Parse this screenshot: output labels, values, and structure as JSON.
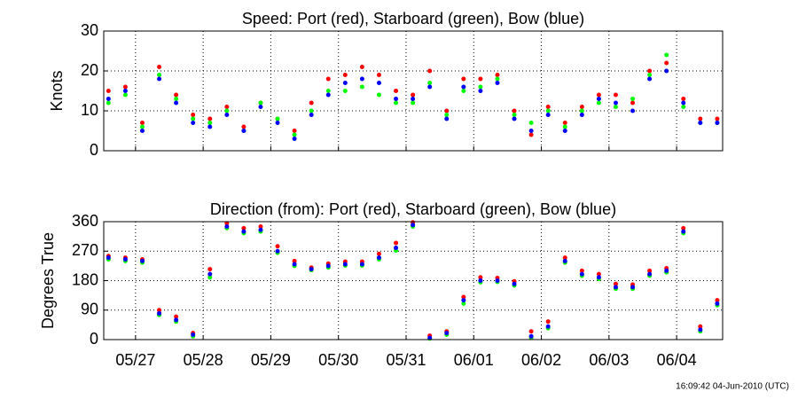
{
  "chart_data": [
    {
      "type": "scatter",
      "title": "Speed: Port (red), Starboard (green), Bow (blue)",
      "y_label": "Knots",
      "x": [
        -0.4,
        -0.15,
        0.1,
        0.35,
        0.6,
        0.85,
        1.1,
        1.35,
        1.6,
        1.85,
        2.1,
        2.35,
        2.6,
        2.85,
        3.1,
        3.35,
        3.6,
        3.85,
        4.1,
        4.35,
        4.6,
        4.85,
        5.1,
        5.35,
        5.6,
        5.85,
        6.1,
        6.35,
        6.6,
        6.85,
        7.1,
        7.35,
        7.6,
        7.85,
        8.1,
        8.35,
        8.6
      ],
      "series": [
        {
          "name": "Port",
          "color": "#ff0000",
          "values": [
            15,
            16,
            7,
            21,
            14,
            9,
            8,
            11,
            6,
            12,
            8,
            5,
            12,
            18,
            19,
            21,
            19,
            15,
            14,
            20,
            10,
            18,
            18,
            19,
            10,
            4,
            11,
            7,
            11,
            14,
            14,
            12,
            20,
            22,
            13,
            8,
            8
          ]
        },
        {
          "name": "Starboard",
          "color": "#00ff00",
          "values": [
            12,
            14,
            6,
            19,
            13,
            8,
            7,
            10,
            5,
            12,
            8,
            4,
            10,
            15,
            15,
            16,
            14,
            12,
            12,
            17,
            9,
            15,
            16,
            18,
            9,
            7,
            10,
            6,
            10,
            12,
            11,
            13,
            19,
            24,
            11,
            7,
            7
          ]
        },
        {
          "name": "Bow",
          "color": "#0000ff",
          "values": [
            13,
            15,
            5,
            18,
            12,
            7,
            6,
            9,
            5,
            11,
            7,
            3,
            9,
            14,
            17,
            18,
            17,
            13,
            13,
            16,
            8,
            16,
            15,
            17,
            8,
            5,
            9,
            5,
            9,
            13,
            12,
            10,
            18,
            20,
            12,
            7,
            7
          ]
        }
      ],
      "xlim": [
        -0.47,
        8.68
      ],
      "xticks": [
        0,
        1,
        2,
        3,
        4,
        5,
        6,
        7,
        8
      ],
      "ylim": [
        0,
        30
      ],
      "yticks": [
        0,
        10,
        20,
        30
      ],
      "grid": true
    },
    {
      "type": "scatter",
      "title": "Direction (from): Port (red), Starboard (green), Bow (blue)",
      "y_label": "Degrees True",
      "x": [
        -0.4,
        -0.15,
        0.1,
        0.35,
        0.6,
        0.85,
        1.1,
        1.35,
        1.6,
        1.85,
        2.1,
        2.35,
        2.6,
        2.85,
        3.1,
        3.35,
        3.6,
        3.85,
        4.1,
        4.35,
        4.6,
        4.85,
        5.1,
        5.35,
        5.6,
        5.85,
        6.1,
        6.35,
        6.6,
        6.85,
        7.1,
        7.35,
        7.6,
        7.85,
        8.1,
        8.35,
        8.6
      ],
      "series": [
        {
          "name": "Port",
          "color": "#ff0000",
          "values": [
            255,
            250,
            245,
            90,
            70,
            20,
            215,
            355,
            340,
            345,
            285,
            240,
            220,
            232,
            238,
            238,
            262,
            295,
            358,
            12,
            25,
            130,
            190,
            188,
            178,
            25,
            55,
            250,
            210,
            200,
            170,
            168,
            210,
            218,
            340,
            40,
            120
          ]
        },
        {
          "name": "Starboard",
          "color": "#00ff00",
          "values": [
            245,
            240,
            235,
            75,
            55,
            10,
            190,
            340,
            325,
            330,
            265,
            225,
            212,
            220,
            226,
            226,
            245,
            272,
            345,
            3,
            15,
            110,
            175,
            176,
            165,
            5,
            35,
            235,
            195,
            185,
            155,
            155,
            195,
            205,
            325,
            25,
            105
          ]
        },
        {
          "name": "Bow",
          "color": "#0000ff",
          "values": [
            250,
            245,
            240,
            80,
            60,
            15,
            200,
            345,
            330,
            335,
            270,
            230,
            215,
            225,
            230,
            230,
            250,
            280,
            350,
            5,
            20,
            120,
            180,
            180,
            170,
            10,
            40,
            240,
            200,
            190,
            160,
            160,
            200,
            210,
            330,
            30,
            110
          ]
        }
      ],
      "xlim": [
        -0.47,
        8.68
      ],
      "xticks": [
        {
          "value": 0,
          "label": "05/27"
        },
        {
          "value": 1,
          "label": "05/28"
        },
        {
          "value": 2,
          "label": "05/29"
        },
        {
          "value": 3,
          "label": "05/30"
        },
        {
          "value": 4,
          "label": "05/31"
        },
        {
          "value": 5,
          "label": "06/01"
        },
        {
          "value": 6,
          "label": "06/02"
        },
        {
          "value": 7,
          "label": "06/03"
        },
        {
          "value": 8,
          "label": "06/04"
        }
      ],
      "ylim": [
        0,
        360
      ],
      "yticks": [
        0,
        90,
        180,
        270,
        360
      ],
      "grid": true
    }
  ],
  "footer": "16:09:42 04-Jun-2010 (UTC)"
}
